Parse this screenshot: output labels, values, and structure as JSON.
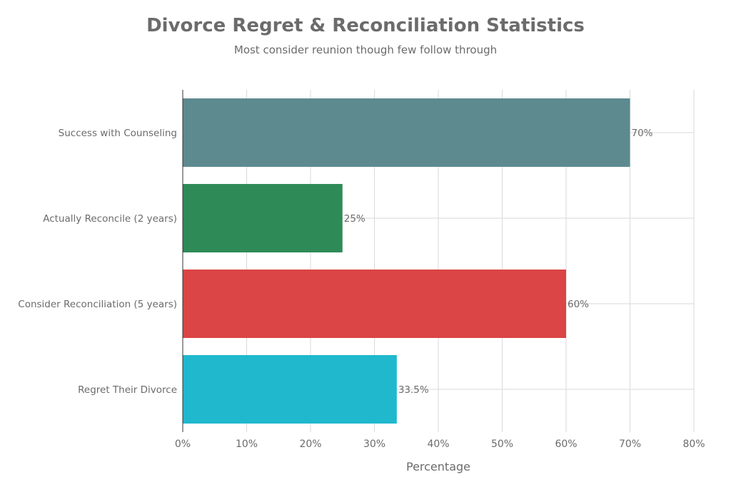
{
  "chart_data": {
    "type": "bar",
    "orientation": "horizontal",
    "title": "Divorce Regret & Reconciliation Statistics",
    "subtitle": "Most consider reunion though few follow through",
    "xlabel": "Percentage",
    "ylabel": "",
    "xlim": [
      0,
      80
    ],
    "x_ticks": [
      0,
      10,
      20,
      30,
      40,
      50,
      60,
      70,
      80
    ],
    "x_tick_labels": [
      "0%",
      "10%",
      "20%",
      "30%",
      "40%",
      "50%",
      "60%",
      "70%",
      "80%"
    ],
    "grid": true,
    "categories": [
      "Success with Counseling",
      "Actually Reconcile (2 years)",
      "Consider Reconciliation (5 years)",
      "Regret Their Divorce"
    ],
    "values": [
      70,
      25,
      60,
      33.5
    ],
    "data_labels": [
      "70%",
      "25%",
      "60%",
      "33.5%"
    ],
    "colors": [
      "#5d8a8f",
      "#2e8b57",
      "#db4545",
      "#1fb8cd"
    ]
  }
}
